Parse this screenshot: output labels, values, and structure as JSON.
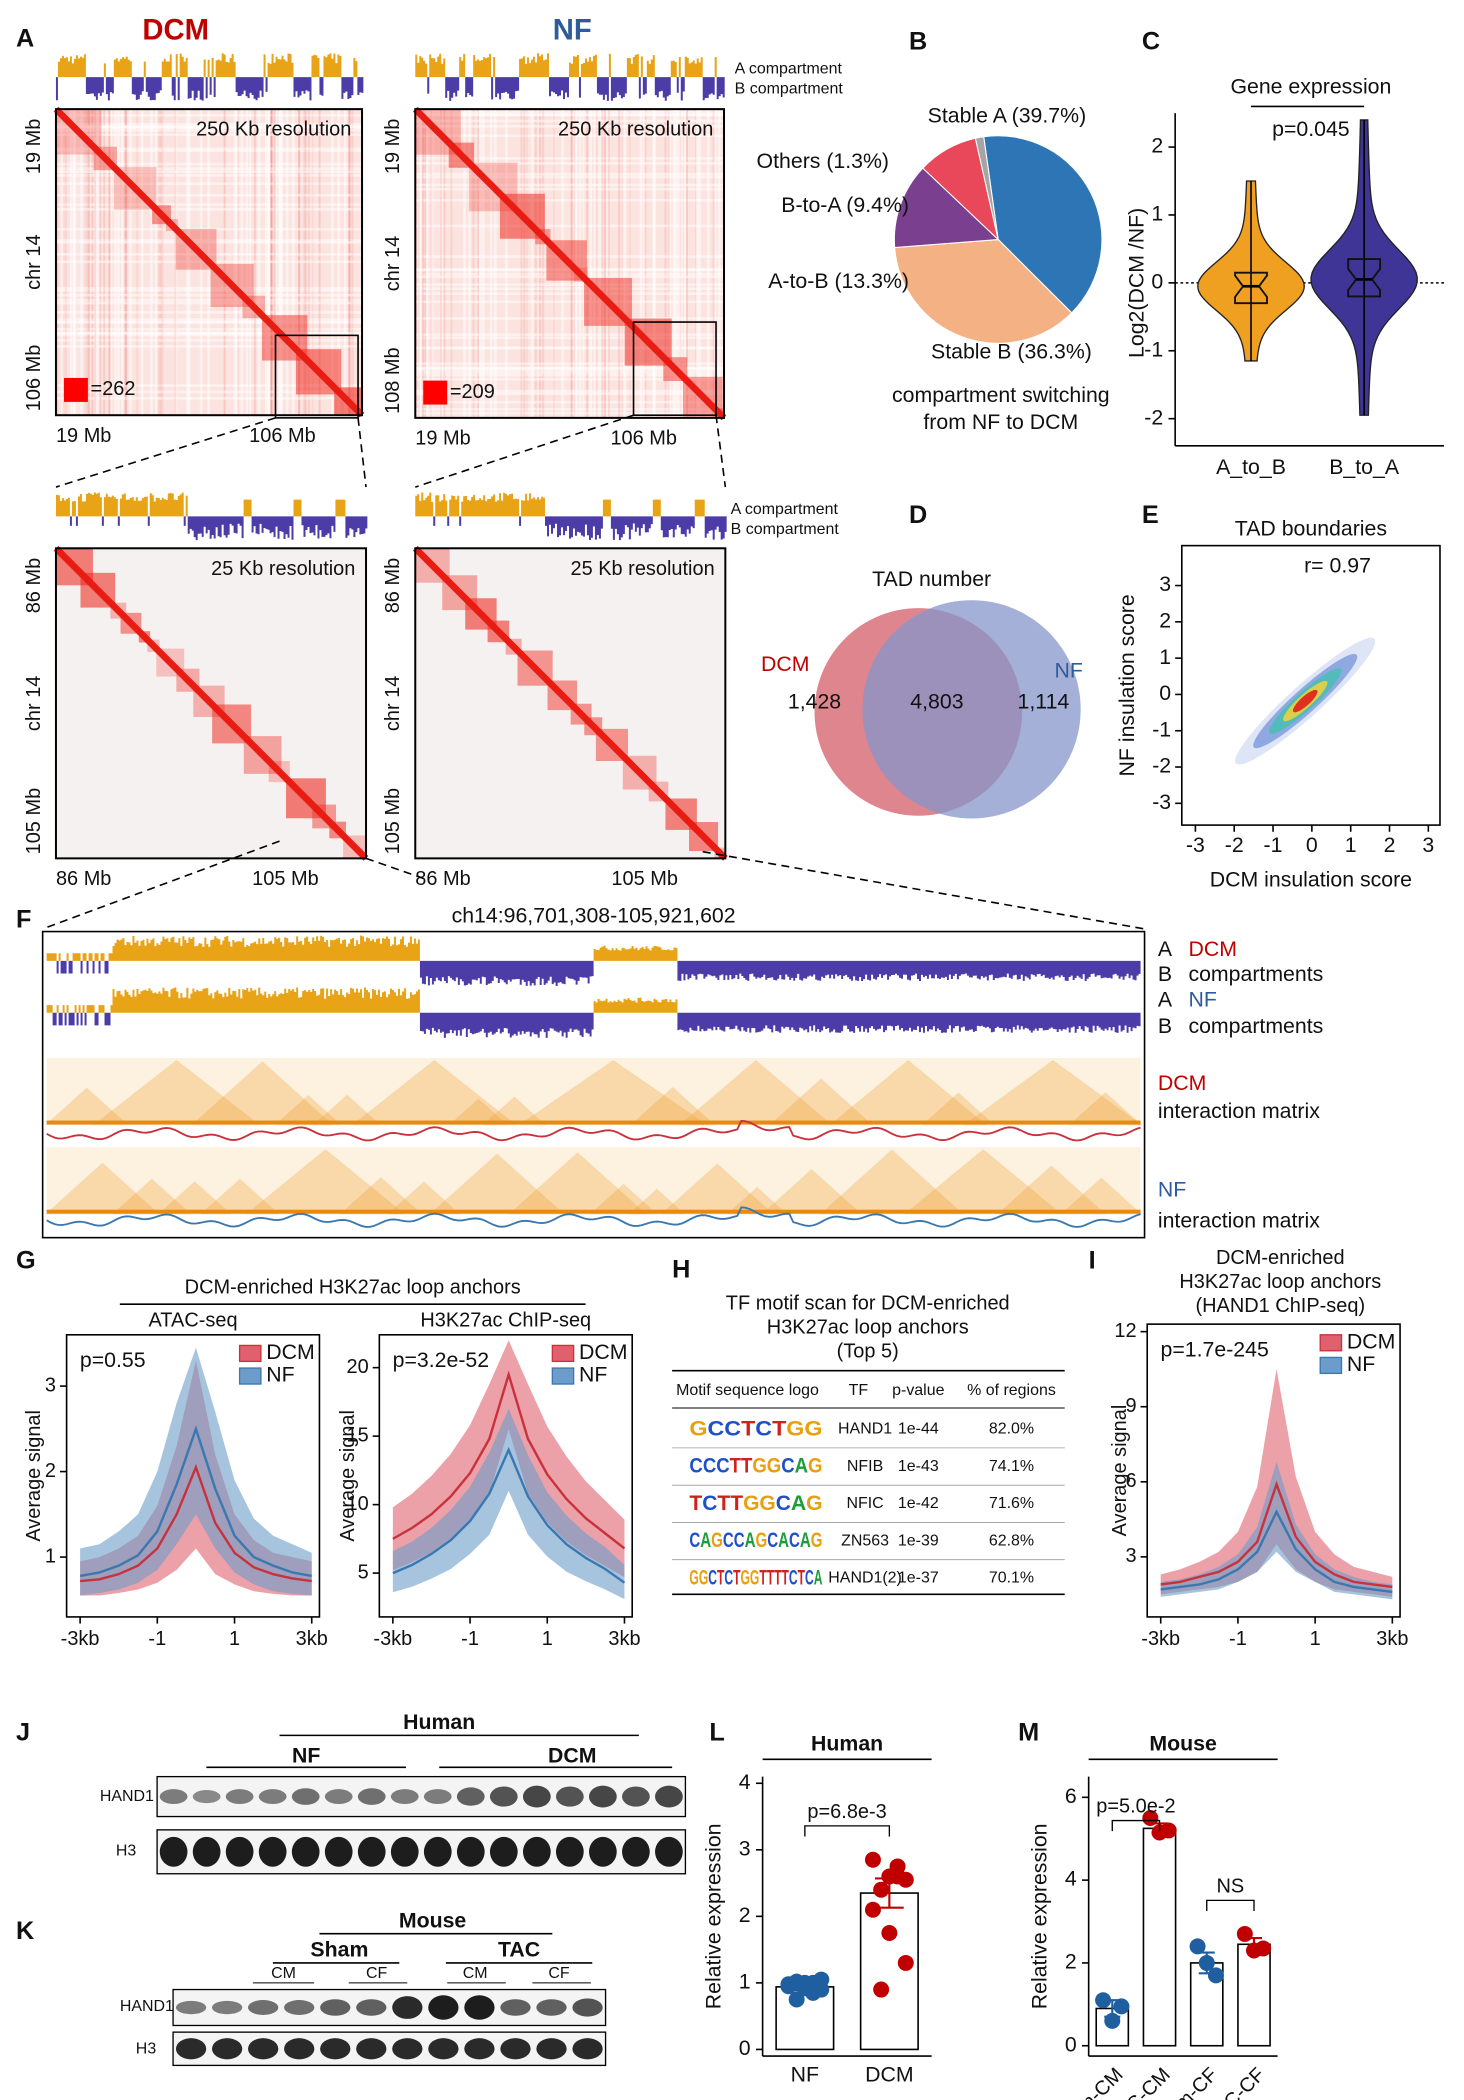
{
  "panel_labels": [
    "A",
    "B",
    "C",
    "D",
    "E",
    "F",
    "G",
    "H",
    "I",
    "J",
    "K",
    "L",
    "M"
  ],
  "hic": {
    "titles": [
      "DCM",
      "NF"
    ],
    "compartment_labels": [
      [
        "A compartment",
        "B compartment"
      ],
      [
        "A compartment",
        "B compartment"
      ]
    ],
    "maps": [
      {
        "resolution": "250 Kb resolution",
        "y_labels": [
          "19 Mb",
          "chr 14",
          "106 Mb"
        ],
        "x_labels": [
          "19 Mb",
          "106 Mb"
        ],
        "scale_label": "=262"
      },
      {
        "resolution": "250 Kb resolution",
        "y_labels": [
          "19 Mb",
          "chr 14",
          "108 Mb"
        ],
        "x_labels": [
          "19 Mb",
          "106 Mb"
        ],
        "scale_label": "=209"
      },
      {
        "resolution": "25 Kb resolution",
        "y_labels": [
          "86 Mb",
          "chr 14",
          "105 Mb"
        ],
        "x_labels": [
          "86 Mb",
          "105 Mb"
        ]
      },
      {
        "resolution": "25 Kb resolution",
        "y_labels": [
          "86 Mb",
          "chr 14",
          "105 Mb"
        ],
        "x_labels": [
          "86 Mb",
          "105 Mb"
        ]
      }
    ]
  },
  "f_panel": {
    "title": "ch14:96,701,308-105,921,602",
    "labels": [
      "A",
      "DCM",
      "B",
      "compartments",
      "A",
      "NF",
      "B",
      "compartments",
      "DCM",
      "interaction matrix",
      "NF",
      "interaction matrix"
    ]
  },
  "g_header": "DCM-enriched H3K27ac loop anchors",
  "table": {
    "title": [
      "TF motif scan for DCM-enriched",
      "H3K27ac loop anchors",
      "(Top 5)"
    ],
    "header": [
      "Motif sequence logo",
      "TF",
      "p-value",
      "% of regions"
    ],
    "rows": [
      [
        "GCCTCTGG",
        "HAND1",
        "1e-44",
        "82.0%"
      ],
      [
        "CCCTTGGCAG",
        "NFIB",
        "1e-43",
        "74.1%"
      ],
      [
        "TCTTGGCAG",
        "NFIC",
        "1e-42",
        "71.6%"
      ],
      [
        "CAGCCAGCACAG",
        "ZN563",
        "1e-39",
        "62.8%"
      ],
      [
        "GGCTCTGGTTTTCTCA",
        "HAND1(2)",
        "1e-37",
        "70.1%"
      ]
    ]
  },
  "blots": {
    "J": {
      "group": "Human",
      "subgroups": [
        "NF",
        "DCM"
      ],
      "rows": [
        "HAND1",
        "H3"
      ]
    },
    "K": {
      "group": "Mouse",
      "subgroups": [
        "Sham",
        "TAC"
      ],
      "cell_types": [
        "CM",
        "CF",
        "CM",
        "CF"
      ],
      "rows": [
        "HAND1",
        "H3"
      ]
    }
  },
  "chart_data": [
    {
      "type": "pie",
      "categories": [
        "Stable A",
        "Stable B",
        "A-to-B",
        "B-to-A",
        "Others"
      ],
      "values": [
        39.7,
        36.3,
        13.3,
        9.4,
        1.3
      ],
      "value_labels": [
        "Stable A (39.7%)",
        "Stable B (36.3%)",
        "A-to-B (13.3%)",
        "B-to-A (9.4%)",
        "Others (1.3%)"
      ],
      "colors": [
        "#2e75b6",
        "#f4b183",
        "#7b3f8f",
        "#e8485a",
        "#a5a5a5"
      ],
      "caption": [
        "compartment switching",
        "from NF to DCM"
      ]
    },
    {
      "type": "violin",
      "title": "Gene expression",
      "ylabel": "Log2(DCM /NF)",
      "categories": [
        "A_to_B",
        "B_to_A"
      ],
      "colors": [
        "#f0a020",
        "#3f3596"
      ],
      "stats": [
        {
          "min": -1.15,
          "q1": -0.3,
          "median": -0.05,
          "q3": 0.15,
          "max": 1.5
        },
        {
          "min": -1.95,
          "q1": -0.2,
          "median": 0.05,
          "q3": 0.35,
          "max": 2.4
        }
      ],
      "ylim": [
        -2.4,
        2.5
      ],
      "yticks": [
        -2,
        -1,
        0,
        1,
        2
      ],
      "annotation": "p=0.045"
    },
    {
      "type": "venn",
      "title": "TAD number",
      "sets": [
        "DCM",
        "NF"
      ],
      "values": [
        1428,
        4803,
        1114
      ],
      "value_labels": [
        "1,428",
        "4,803",
        "1,114"
      ],
      "colors": [
        "#d9707a",
        "#8595c9"
      ]
    },
    {
      "type": "scatter",
      "title": "TAD boundaries",
      "annotation": "r= 0.97",
      "xlabel": "DCM insulation score",
      "ylabel": "NF insulation score",
      "xlim": [
        -3.35,
        3.3
      ],
      "ylim": [
        -3.6,
        4.1
      ],
      "xticks": [
        -3,
        -2,
        -1,
        0,
        1,
        2,
        3
      ],
      "yticks": [
        -3,
        -2,
        -1,
        0,
        1,
        2,
        3
      ]
    },
    {
      "type": "line",
      "title": "ATAC-seq",
      "ylabel": "Average signal",
      "annotation": "p=0.55",
      "legend": "upper right",
      "x": [
        -3,
        -2.5,
        -2,
        -1.5,
        -1,
        -0.5,
        0,
        0.5,
        1,
        1.5,
        2,
        2.5,
        3
      ],
      "xlim": [
        -3.35,
        3.2
      ],
      "xticks": [
        {
          "value": -3,
          "label": "-3kb"
        },
        -1,
        1,
        {
          "value": 3,
          "label": "3kb"
        }
      ],
      "ylim": [
        0.3,
        3.6
      ],
      "yticks": [
        1,
        2,
        3
      ],
      "series": [
        {
          "name": "DCM",
          "color": "#c8323c",
          "band_color": "#e0606e",
          "values": [
            0.72,
            0.74,
            0.8,
            0.9,
            1.1,
            1.5,
            2.05,
            1.4,
            1.05,
            0.88,
            0.8,
            0.75,
            0.72
          ],
          "lower": [
            0.55,
            0.55,
            0.58,
            0.62,
            0.7,
            0.85,
            1.1,
            0.8,
            0.68,
            0.6,
            0.57,
            0.55,
            0.55
          ],
          "upper": [
            0.95,
            1.0,
            1.1,
            1.25,
            1.6,
            2.3,
            3.3,
            2.2,
            1.5,
            1.2,
            1.05,
            1.0,
            0.95
          ]
        },
        {
          "name": "NF",
          "color": "#3a78b0",
          "band_color": "#6c9dca",
          "values": [
            0.78,
            0.82,
            0.9,
            1.02,
            1.3,
            1.85,
            2.5,
            1.8,
            1.25,
            1.0,
            0.9,
            0.82,
            0.78
          ],
          "lower": [
            0.55,
            0.58,
            0.62,
            0.7,
            0.85,
            1.15,
            1.5,
            1.1,
            0.82,
            0.68,
            0.6,
            0.57,
            0.55
          ],
          "upper": [
            1.1,
            1.15,
            1.3,
            1.5,
            2.0,
            2.8,
            3.45,
            2.7,
            1.9,
            1.45,
            1.25,
            1.15,
            1.05
          ]
        }
      ]
    },
    {
      "type": "line",
      "title": "H3K27ac ChIP-seq",
      "ylabel": "Average signal",
      "annotation": "p=3.2e-52",
      "legend": "upper right",
      "x": [
        -3,
        -2.5,
        -2,
        -1.5,
        -1,
        -0.5,
        0,
        0.5,
        1,
        1.5,
        2,
        2.5,
        3
      ],
      "xlim": [
        -3.35,
        3.2
      ],
      "xticks": [
        {
          "value": -3,
          "label": "-3kb"
        },
        -1,
        1,
        {
          "value": 3,
          "label": "3kb"
        }
      ],
      "ylim": [
        1.8,
        22.4
      ],
      "yticks": [
        5,
        10,
        15,
        20
      ],
      "series": [
        {
          "name": "DCM",
          "color": "#c8323c",
          "band_color": "#e0606e",
          "values": [
            7.5,
            8.3,
            9.3,
            10.6,
            12.3,
            14.8,
            19.5,
            14.8,
            12.2,
            10.4,
            9.0,
            7.9,
            6.8
          ],
          "lower": [
            5.2,
            5.8,
            6.5,
            7.5,
            8.8,
            10.8,
            15.5,
            10.8,
            8.7,
            7.3,
            6.3,
            5.5,
            4.7
          ],
          "upper": [
            9.8,
            10.8,
            12.1,
            13.7,
            15.8,
            18.8,
            22.0,
            18.8,
            15.7,
            13.5,
            11.7,
            10.3,
            8.9
          ]
        },
        {
          "name": "NF",
          "color": "#3a78b0",
          "band_color": "#6c9dca",
          "values": [
            5.0,
            5.6,
            6.4,
            7.4,
            8.8,
            10.8,
            14.0,
            10.6,
            8.5,
            7.1,
            6.1,
            5.3,
            4.3
          ],
          "lower": [
            3.6,
            4.0,
            4.6,
            5.3,
            6.4,
            7.8,
            11.0,
            7.8,
            6.2,
            5.1,
            4.4,
            3.8,
            3.1
          ],
          "upper": [
            6.6,
            7.3,
            8.3,
            9.6,
            11.3,
            13.8,
            17.0,
            13.6,
            10.9,
            9.2,
            7.9,
            6.9,
            5.6
          ]
        }
      ]
    },
    {
      "type": "line",
      "title": [
        "DCM-enriched",
        "H3K27ac loop anchors",
        "(HAND1 ChIP-seq)"
      ],
      "ylabel": "Average signal",
      "annotation": "p=1.7e-245",
      "legend": "upper right",
      "x": [
        -3,
        -2.5,
        -2,
        -1.5,
        -1,
        -0.5,
        0,
        0.5,
        1,
        1.5,
        2,
        2.5,
        3
      ],
      "xlim": [
        -3.35,
        3.2
      ],
      "xticks": [
        {
          "value": -3,
          "label": "-3kb"
        },
        -1,
        1,
        {
          "value": 3,
          "label": "3kb"
        }
      ],
      "ylim": [
        0.6,
        12.3
      ],
      "yticks": [
        3,
        6,
        9,
        12
      ],
      "series": [
        {
          "name": "DCM",
          "color": "#c8323c",
          "band_color": "#e0606e",
          "values": [
            1.9,
            2.0,
            2.2,
            2.4,
            2.8,
            3.6,
            5.9,
            3.8,
            2.8,
            2.3,
            2.0,
            1.9,
            1.8
          ],
          "lower": [
            1.5,
            1.6,
            1.7,
            1.8,
            2.0,
            2.4,
            3.5,
            2.5,
            2.0,
            1.7,
            1.6,
            1.5,
            1.4
          ],
          "upper": [
            2.3,
            2.5,
            2.8,
            3.2,
            4.0,
            5.8,
            10.5,
            6.2,
            4.0,
            3.1,
            2.6,
            2.4,
            2.2
          ]
        },
        {
          "name": "NF",
          "color": "#3a78b0",
          "band_color": "#6c9dca",
          "values": [
            1.7,
            1.8,
            1.9,
            2.1,
            2.5,
            3.2,
            4.8,
            3.3,
            2.5,
            2.0,
            1.8,
            1.7,
            1.6
          ],
          "lower": [
            1.4,
            1.5,
            1.6,
            1.7,
            2.0,
            2.4,
            3.2,
            2.4,
            2.0,
            1.6,
            1.5,
            1.4,
            1.3
          ],
          "upper": [
            2.0,
            2.1,
            2.3,
            2.6,
            3.1,
            4.2,
            6.8,
            4.3,
            3.1,
            2.5,
            2.2,
            2.0,
            1.9
          ]
        }
      ]
    },
    {
      "type": "dotbar",
      "title": "Human",
      "ylabel": "Relative expression",
      "categories": [
        "NF",
        "DCM"
      ],
      "values": [
        0.94,
        2.35
      ],
      "errors": [
        0.05,
        0.22
      ],
      "colors": [
        "#1f5fa0",
        "#c00000"
      ],
      "points": [
        [
          0.95,
          1.0,
          0.9,
          1.02,
          0.85,
          0.98,
          0.92,
          1.05,
          0.75,
          1.0
        ],
        [
          2.85,
          2.6,
          2.55,
          2.4,
          2.6,
          2.1,
          1.75,
          1.3,
          0.9,
          2.75
        ]
      ],
      "ylim": [
        -0.1,
        4.1
      ],
      "yticks": [
        0,
        1,
        2,
        3,
        4
      ],
      "annotations": [
        "p=6.8e-3"
      ]
    },
    {
      "type": "dotbar",
      "title": "Mouse",
      "ylabel": "Relative expression",
      "categories": [
        "Sham-CM",
        "TAC-CM",
        "Sham-CF",
        "TAC-CF"
      ],
      "values": [
        0.9,
        5.25,
        2.0,
        2.45
      ],
      "errors": [
        0.2,
        0.12,
        0.25,
        0.15
      ],
      "colors": [
        "#1f5fa0",
        "#c00000",
        "#1f5fa0",
        "#c00000"
      ],
      "points": [
        [
          1.1,
          0.6,
          0.95
        ],
        [
          5.5,
          5.15,
          5.2
        ],
        [
          2.4,
          2.0,
          1.7
        ],
        [
          2.7,
          2.3,
          2.35
        ]
      ],
      "ylim": [
        -0.25,
        6.5
      ],
      "yticks": [
        0,
        2,
        4,
        6
      ],
      "annotations": [
        "p=5.0e-2",
        "NS"
      ]
    }
  ]
}
